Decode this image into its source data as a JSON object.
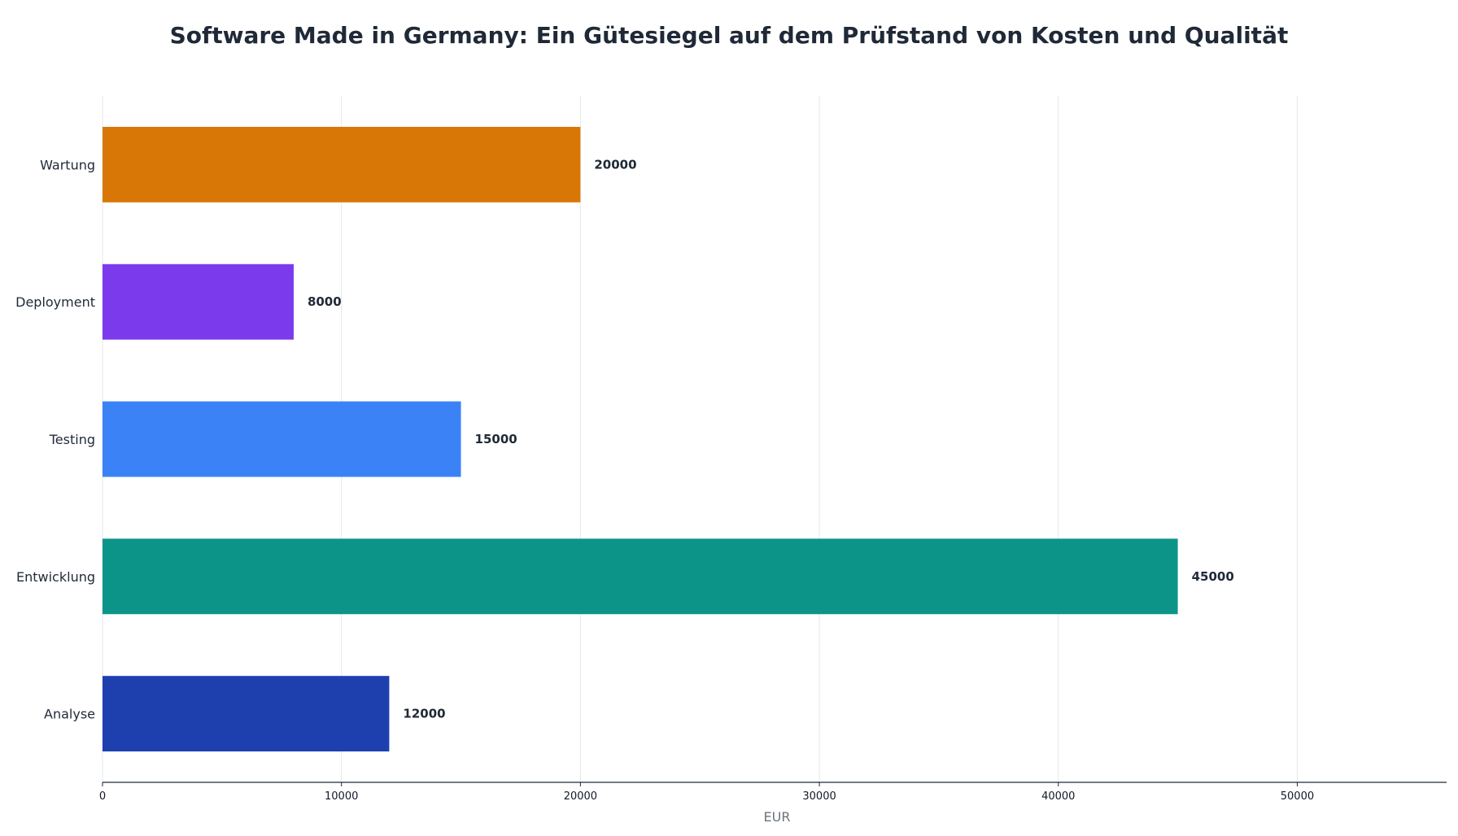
{
  "chart_data": {
    "type": "bar",
    "orientation": "horizontal",
    "title": "Software Made in Germany: Ein Gütesiegel auf dem Prüfstand von Kosten und Qualität",
    "xlabel": "EUR",
    "ylabel": "",
    "categories": [
      "Analyse",
      "Entwicklung",
      "Testing",
      "Deployment",
      "Wartung"
    ],
    "values": [
      12000,
      45000,
      15000,
      8000,
      20000
    ],
    "data_labels": [
      "12000",
      "45000",
      "15000",
      "8000",
      "20000"
    ],
    "colors": [
      "#1e40af",
      "#0d9488",
      "#3b82f6",
      "#7c3aed",
      "#d97706"
    ],
    "xlim": [
      0,
      56250
    ],
    "x_ticks": [
      0,
      10000,
      20000,
      30000,
      40000,
      50000
    ],
    "x_tick_labels": [
      "0",
      "10000",
      "20000",
      "30000",
      "40000",
      "50000"
    ],
    "grid": "vertical",
    "legend": "none"
  }
}
